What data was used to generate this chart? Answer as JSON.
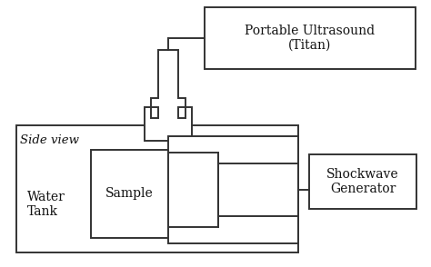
{
  "bg_color": "#ffffff",
  "line_color": "#333333",
  "text_color": "#111111",
  "side_view_label": "Side view",
  "ultrasound_label": "Portable Ultrasound\n(Titan)",
  "sample_label": "Sample",
  "water_tank_label": "Water\nTank",
  "shockwave_label": "Shockwave\nGenerator",
  "lw": 1.4,
  "figw": 4.74,
  "figh": 2.94,
  "dpi": 100
}
